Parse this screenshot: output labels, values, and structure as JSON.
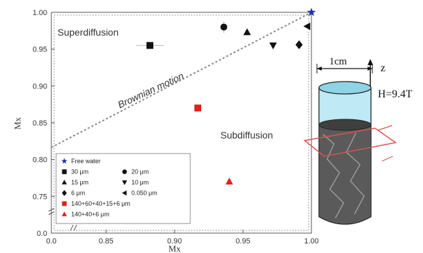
{
  "chart_data": {
    "type": "scatter",
    "xlabel": "Mx",
    "ylabel": "Mx",
    "x_range": [
      0.81,
      1.0
    ],
    "y_range": [
      0.7,
      1.0
    ],
    "x_axis_break": "0.0 to 0.85",
    "y_axis_break": "0.0 to 0.75",
    "x_ticks": [
      {
        "v": 0.0,
        "label": "0.0"
      },
      {
        "v": 0.85,
        "label": "0.85"
      },
      {
        "v": 0.9,
        "label": "0.90"
      },
      {
        "v": 0.95,
        "label": "0.95"
      },
      {
        "v": 1.0,
        "label": "1.00"
      }
    ],
    "y_ticks": [
      {
        "v": 0.0,
        "label": "0.0"
      },
      {
        "v": 0.75,
        "label": "0.75"
      },
      {
        "v": 0.8,
        "label": "0.80"
      },
      {
        "v": 0.85,
        "label": "0.85"
      },
      {
        "v": 0.9,
        "label": "0.90"
      },
      {
        "v": 0.95,
        "label": "0.95"
      },
      {
        "v": 1.0,
        "label": "1.00"
      }
    ],
    "diagonal_label": "Brownian motion",
    "regions": {
      "upper": "Superdiffusion",
      "lower": "Subdiffusion"
    },
    "grid": false,
    "legend_position": "bottom-left",
    "colors": {
      "black": "#111111",
      "red": "#e0201b",
      "blue": "#2233aa",
      "diagonal": "#888888"
    },
    "series": [
      {
        "name": "Free water",
        "marker": "star",
        "color": "#2233aa",
        "points": [
          {
            "x": 1.0,
            "y": 1.0
          }
        ]
      },
      {
        "name": "30 μm",
        "marker": "square",
        "color": "#111111",
        "points": [
          {
            "x": 0.882,
            "y": 0.955,
            "xerr": 0.01
          }
        ]
      },
      {
        "name": "20 μm",
        "marker": "circle",
        "color": "#111111",
        "points": [
          {
            "x": 0.936,
            "y": 0.98,
            "yerr": 0.008
          }
        ]
      },
      {
        "name": "15 μm",
        "marker": "triangle-up",
        "color": "#111111",
        "points": [
          {
            "x": 0.953,
            "y": 0.973
          }
        ]
      },
      {
        "name": "10 μm",
        "marker": "triangle-down",
        "color": "#111111",
        "points": [
          {
            "x": 0.972,
            "y": 0.955
          }
        ]
      },
      {
        "name": "6 μm",
        "marker": "diamond",
        "color": "#111111",
        "points": [
          {
            "x": 0.991,
            "y": 0.956
          }
        ]
      },
      {
        "name": "0.050 μm",
        "marker": "triangle-left",
        "color": "#111111",
        "points": [
          {
            "x": 0.997,
            "y": 0.981
          }
        ]
      },
      {
        "name": "140+60+40+15+6 μm",
        "marker": "square",
        "color": "#e0201b",
        "points": [
          {
            "x": 0.917,
            "y": 0.87
          }
        ]
      },
      {
        "name": "140+40+6 μm",
        "marker": "triangle-up",
        "color": "#e0201b",
        "points": [
          {
            "x": 0.94,
            "y": 0.77
          }
        ]
      }
    ]
  },
  "illustration": {
    "scale_label": "1cm",
    "axis_label": "z",
    "field_label": "H=9.4T",
    "colors": {
      "cylinder_top": "#8fd3e6",
      "cylinder_side": "#bfe9f4",
      "sample": "#5a5a5a",
      "slice": "#d9534f"
    }
  }
}
